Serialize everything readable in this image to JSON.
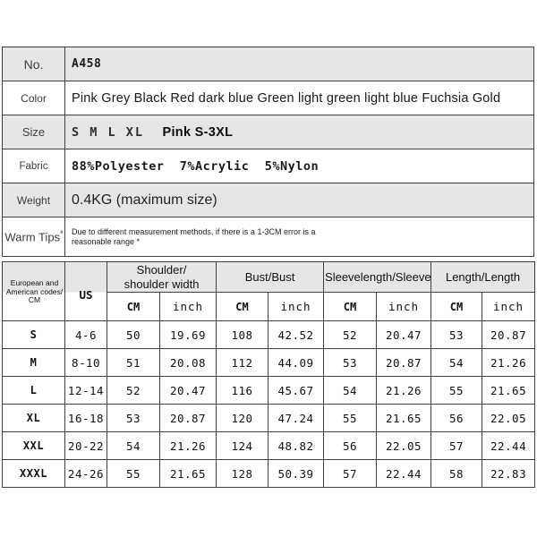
{
  "colors": {
    "shaded_row_bg": "#e6e6e6",
    "border": "#3f3f3f",
    "text": "#1a1a1a"
  },
  "info_table": {
    "rows": [
      {
        "label": "No.",
        "value": "A458"
      },
      {
        "label": "Color",
        "value": "Pink Grey Black Red dark blue Green light green light blue Fuchsia Gold"
      },
      {
        "label": "Size",
        "value": "S M L XL",
        "value_bold": "Pink S-3XL"
      },
      {
        "label": "Fabric",
        "value": "88%Polyester  7%Acrylic  5%Nylon"
      },
      {
        "label": "Weight",
        "value": "0.4KG (maximum size)"
      },
      {
        "label": "Warm Tips",
        "label_sup": "*",
        "value": "Due to different measurement methods, if there is a 1-3CM error is a reasonable range *"
      }
    ]
  },
  "size_table": {
    "corner_header": "European and American codes/ CM",
    "us_header": "US",
    "group_headers": [
      "Shoulder/\nshoulder width",
      "Bust/Bust",
      "Sleevelength/Sleeve",
      "Length/Length"
    ],
    "unit_cm": "CM",
    "unit_inch": "inch",
    "rows": [
      {
        "size": "S",
        "us": "4-6",
        "values": [
          "50",
          "19.69",
          "108",
          "42.52",
          "52",
          "20.47",
          "53",
          "20.87"
        ]
      },
      {
        "size": "M",
        "us": "8-10",
        "values": [
          "51",
          "20.08",
          "112",
          "44.09",
          "53",
          "20.87",
          "54",
          "21.26"
        ]
      },
      {
        "size": "L",
        "us": "12-14",
        "values": [
          "52",
          "20.47",
          "116",
          "45.67",
          "54",
          "21.26",
          "55",
          "21.65"
        ]
      },
      {
        "size": "XL",
        "us": "16-18",
        "values": [
          "53",
          "20.87",
          "120",
          "47.24",
          "55",
          "21.65",
          "56",
          "22.05"
        ]
      },
      {
        "size": "XXL",
        "us": "20-22",
        "values": [
          "54",
          "21.26",
          "124",
          "48.82",
          "56",
          "22.05",
          "57",
          "22.44"
        ]
      },
      {
        "size": "XXXL",
        "us": "24-26",
        "values": [
          "55",
          "21.65",
          "128",
          "50.39",
          "57",
          "22.44",
          "58",
          "22.83"
        ]
      }
    ]
  }
}
